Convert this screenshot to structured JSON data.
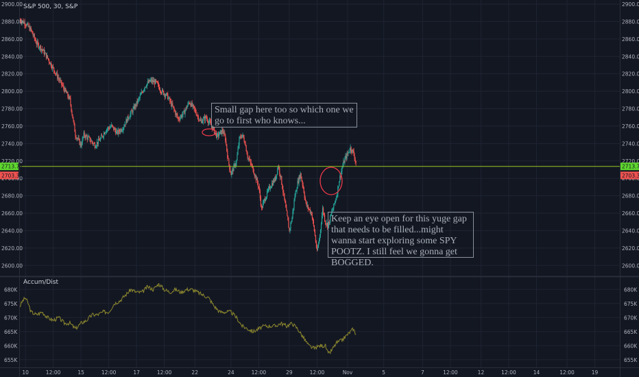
{
  "chart_data": [
    {
      "type": "candlestick",
      "title": "S&P 500, 30, S&P",
      "ylim": [
        2590,
        2900
      ],
      "y_ticks": [
        "2900.00",
        "2880.00",
        "2860.00",
        "2840.00",
        "2820.00",
        "2800.00",
        "2780.00",
        "2760.00",
        "2740.00",
        "2720.00",
        "2700.00",
        "2680.00",
        "2660.00",
        "2640.00",
        "2620.00",
        "2600.00"
      ],
      "price_levels": {
        "current": "2713.74",
        "previous": "2703.37"
      },
      "annotations": [
        "Small gap here too so which one we go to first who knows...",
        "Keep an eye open for this yuge gap that needs to be filled...might wanna start exploring some SPY POOTZ. I still feel we gonna get BOGGED."
      ],
      "path_close": [
        [
          0,
          2882
        ],
        [
          2,
          2878
        ],
        [
          4,
          2870
        ],
        [
          6,
          2855
        ],
        [
          8,
          2848
        ],
        [
          10,
          2838
        ],
        [
          13,
          2820
        ],
        [
          16,
          2802
        ],
        [
          18,
          2790
        ],
        [
          19,
          2770
        ],
        [
          20,
          2750
        ],
        [
          22,
          2738
        ],
        [
          23,
          2750
        ],
        [
          25,
          2745
        ],
        [
          27,
          2738
        ],
        [
          29,
          2745
        ],
        [
          31,
          2756
        ],
        [
          33,
          2760
        ],
        [
          35,
          2752
        ],
        [
          37,
          2758
        ],
        [
          39,
          2770
        ],
        [
          41,
          2780
        ],
        [
          43,
          2792
        ],
        [
          45,
          2806
        ],
        [
          47,
          2812
        ],
        [
          49,
          2810
        ],
        [
          51,
          2800
        ],
        [
          53,
          2795
        ],
        [
          55,
          2782
        ],
        [
          57,
          2768
        ],
        [
          59,
          2775
        ],
        [
          61,
          2788
        ],
        [
          63,
          2778
        ],
        [
          65,
          2765
        ],
        [
          67,
          2770
        ],
        [
          69,
          2760
        ],
        [
          71,
          2748
        ],
        [
          73,
          2755
        ],
        [
          74,
          2745
        ],
        [
          75,
          2720
        ],
        [
          76,
          2705
        ],
        [
          78,
          2720
        ],
        [
          79,
          2745
        ],
        [
          80,
          2750
        ],
        [
          81,
          2742
        ],
        [
          82,
          2725
        ],
        [
          84,
          2710
        ],
        [
          86,
          2690
        ],
        [
          87,
          2665
        ],
        [
          88,
          2675
        ],
        [
          90,
          2690
        ],
        [
          92,
          2700
        ],
        [
          93,
          2715
        ],
        [
          94,
          2700
        ],
        [
          95,
          2680
        ],
        [
          96,
          2660
        ],
        [
          97,
          2640
        ],
        [
          98,
          2655
        ],
        [
          99,
          2680
        ],
        [
          100,
          2695
        ],
        [
          101,
          2705
        ],
        [
          102,
          2690
        ],
        [
          103,
          2670
        ],
        [
          105,
          2660
        ],
        [
          106,
          2640
        ],
        [
          107,
          2615
        ],
        [
          108,
          2635
        ],
        [
          109,
          2665
        ],
        [
          110,
          2650
        ],
        [
          111,
          2645
        ],
        [
          112,
          2658
        ],
        [
          113,
          2668
        ],
        [
          114,
          2680
        ],
        [
          115,
          2698
        ],
        [
          116,
          2712
        ],
        [
          117,
          2722
        ],
        [
          118,
          2728
        ],
        [
          119,
          2735
        ],
        [
          120,
          2730
        ],
        [
          121,
          2718
        ]
      ],
      "xlim": [
        0,
        216
      ],
      "x_ticks": [
        {
          "label": "10",
          "x": 2
        },
        {
          "label": "12:00",
          "x": 12
        },
        {
          "label": "15",
          "x": 22
        },
        {
          "label": "12:00",
          "x": 32
        },
        {
          "label": "17",
          "x": 42
        },
        {
          "label": "12:00",
          "x": 52
        },
        {
          "label": "22",
          "x": 63
        },
        {
          "label": "24",
          "x": 76
        },
        {
          "label": "12:00",
          "x": 86
        },
        {
          "label": "29",
          "x": 97
        },
        {
          "label": "12:00",
          "x": 107
        },
        {
          "label": "Nov",
          "x": 118
        },
        {
          "label": "5",
          "x": 131
        },
        {
          "label": "7",
          "x": 145
        },
        {
          "label": "12:00",
          "x": 155
        },
        {
          "label": "12",
          "x": 166
        },
        {
          "label": "12:00",
          "x": 176
        },
        {
          "label": "14",
          "x": 186
        },
        {
          "label": "12:00",
          "x": 197
        },
        {
          "label": "19",
          "x": 207
        }
      ]
    },
    {
      "type": "line",
      "title": "Accum/Dist",
      "ylim": [
        653,
        683
      ],
      "y_ticks": [
        "680K",
        "675K",
        "670K",
        "665K",
        "660K",
        "655K"
      ],
      "values": [
        [
          0,
          674
        ],
        [
          1,
          676
        ],
        [
          2,
          677
        ],
        [
          3,
          675
        ],
        [
          4,
          672
        ],
        [
          6,
          671
        ],
        [
          8,
          672
        ],
        [
          10,
          670
        ],
        [
          12,
          669
        ],
        [
          14,
          670
        ],
        [
          16,
          668
        ],
        [
          18,
          668
        ],
        [
          20,
          666
        ],
        [
          22,
          668
        ],
        [
          24,
          669
        ],
        [
          26,
          671
        ],
        [
          28,
          671
        ],
        [
          30,
          672
        ],
        [
          32,
          672
        ],
        [
          34,
          675
        ],
        [
          36,
          676
        ],
        [
          38,
          678
        ],
        [
          40,
          680
        ],
        [
          42,
          679
        ],
        [
          44,
          679
        ],
        [
          46,
          681
        ],
        [
          48,
          680
        ],
        [
          50,
          682
        ],
        [
          52,
          680
        ],
        [
          54,
          679
        ],
        [
          56,
          680
        ],
        [
          58,
          679
        ],
        [
          60,
          680
        ],
        [
          62,
          680
        ],
        [
          64,
          679
        ],
        [
          66,
          678
        ],
        [
          68,
          677
        ],
        [
          70,
          674
        ],
        [
          72,
          672
        ],
        [
          74,
          672
        ],
        [
          76,
          672
        ],
        [
          78,
          670
        ],
        [
          80,
          667
        ],
        [
          82,
          666
        ],
        [
          84,
          665
        ],
        [
          86,
          666
        ],
        [
          88,
          667
        ],
        [
          90,
          667
        ],
        [
          92,
          667
        ],
        [
          94,
          668
        ],
        [
          96,
          667
        ],
        [
          98,
          668
        ],
        [
          100,
          666
        ],
        [
          102,
          663
        ],
        [
          104,
          660
        ],
        [
          106,
          659
        ],
        [
          108,
          660
        ],
        [
          110,
          660
        ],
        [
          111,
          657
        ],
        [
          112,
          658
        ],
        [
          114,
          661
        ],
        [
          116,
          662
        ],
        [
          118,
          664
        ],
        [
          120,
          666
        ],
        [
          121,
          664
        ]
      ]
    }
  ]
}
